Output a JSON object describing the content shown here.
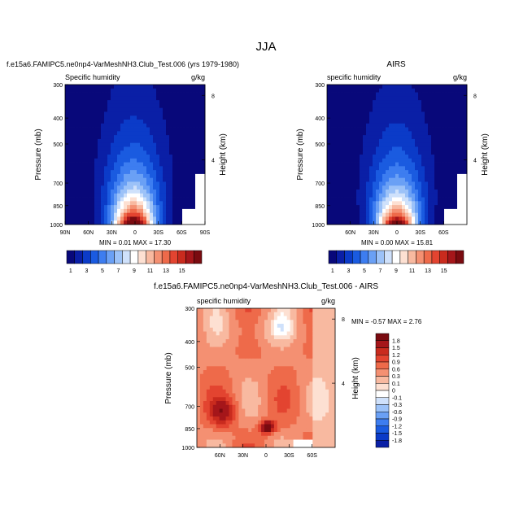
{
  "title": "JJA",
  "chart_data": [
    {
      "type": "heatmap",
      "case_label": "f.e15a6.FAMIPC5.ne0np4-VarMeshNH3.Club_Test.006 (yrs 1979-1980)",
      "title": "Specific humidity",
      "units": "g/kg",
      "ylabel": "Pressure (mb)",
      "ylabel_right": "Height (km)",
      "y_ticks": [
        "300",
        "400",
        "500",
        "700",
        "850",
        "1000"
      ],
      "y_tick_values": [
        300,
        400,
        500,
        700,
        850,
        1000
      ],
      "right_ticks": [
        "8",
        "4"
      ],
      "right_tick_values": [
        8,
        4
      ],
      "x_ticks": [
        "90N",
        "60N",
        "30N",
        "0",
        "30S",
        "60S",
        "90S"
      ],
      "x_tick_values": [
        90,
        60,
        30,
        0,
        -30,
        -60,
        -90
      ],
      "ylim": [
        300,
        1000
      ],
      "xlim": [
        90,
        -90
      ],
      "min": 0.01,
      "max": 17.3,
      "stat_text": "MIN =  0.01  MAX =  17.30",
      "peak_lat": 2,
      "colorbar": {
        "levels": [
          "1",
          "3",
          "5",
          "7",
          "9",
          "11",
          "13",
          "15"
        ],
        "colors": [
          "#08087a",
          "#0a1fa6",
          "#0b3bc8",
          "#1a5be0",
          "#3d7df0",
          "#6aa0f5",
          "#9cc2f8",
          "#cfe1fb",
          "#ffffff",
          "#fde0d2",
          "#f8b9a0",
          "#f49072",
          "#ee6a4a",
          "#e34430",
          "#c92b1e",
          "#a5161a",
          "#7a0b10"
        ]
      }
    },
    {
      "type": "heatmap",
      "title": "AIRS",
      "subtitle": "specific humidity",
      "units": "g/kg",
      "ylabel": "Pressure (mb)",
      "ylabel_right": "Height (km)",
      "y_ticks": [
        "300",
        "400",
        "500",
        "700",
        "850",
        "1000"
      ],
      "y_tick_values": [
        300,
        400,
        500,
        700,
        850,
        1000
      ],
      "right_ticks": [
        "8",
        "4"
      ],
      "right_tick_values": [
        8,
        4
      ],
      "x_ticks": [
        "60N",
        "30N",
        "0",
        "30S",
        "60S"
      ],
      "x_tick_values": [
        60,
        30,
        0,
        -30,
        -60
      ],
      "ylim": [
        300,
        1000
      ],
      "xlim": [
        90,
        -90
      ],
      "min": 0.0,
      "max": 15.81,
      "stat_text": "MIN =  0.00  MAX =  15.81",
      "peak_lat": 0,
      "colorbar": {
        "levels": [
          "1",
          "3",
          "5",
          "7",
          "9",
          "11",
          "13",
          "15"
        ],
        "colors": [
          "#08087a",
          "#0a1fa6",
          "#0b3bc8",
          "#1a5be0",
          "#3d7df0",
          "#6aa0f5",
          "#9cc2f8",
          "#cfe1fb",
          "#ffffff",
          "#fde0d2",
          "#f8b9a0",
          "#f49072",
          "#ee6a4a",
          "#e34430",
          "#c92b1e",
          "#a5161a",
          "#7a0b10"
        ]
      }
    },
    {
      "type": "heatmap",
      "case_label": "f.e15a6.FAMIPC5.ne0np4-VarMeshNH3.Club_Test.006 - AIRS",
      "title": "specific humidity",
      "units": "g/kg",
      "ylabel": "Pressure (mb)",
      "ylabel_right": "Height (km)",
      "y_ticks": [
        "300",
        "400",
        "500",
        "700",
        "850",
        "1000"
      ],
      "y_tick_values": [
        300,
        400,
        500,
        700,
        850,
        1000
      ],
      "right_ticks": [
        "8",
        "4"
      ],
      "right_tick_values": [
        8,
        4
      ],
      "x_ticks": [
        "60N",
        "30N",
        "0",
        "30S",
        "60S"
      ],
      "x_tick_values": [
        60,
        30,
        0,
        -30,
        -60
      ],
      "ylim": [
        300,
        1000
      ],
      "xlim": [
        90,
        -90
      ],
      "min": -0.57,
      "max": 2.76,
      "stat_text": "MIN = -0.57  MAX =  2.76",
      "colorbar": {
        "levels": [
          "1.8",
          "1.5",
          "1.2",
          "0.9",
          "0.6",
          "0.3",
          "0.1",
          "0",
          "-0.1",
          "-0.3",
          "-0.6",
          "-0.9",
          "-1.2",
          "-1.5",
          "-1.8"
        ],
        "colors": [
          "#7a0b10",
          "#a5161a",
          "#c92b1e",
          "#e34430",
          "#ee6a4a",
          "#f49072",
          "#f8b9a0",
          "#fde0d2",
          "#ffffff",
          "#cfe1fb",
          "#9cc2f8",
          "#6aa0f5",
          "#3d7df0",
          "#1a5be0",
          "#0b3bc8",
          "#0a1fa6"
        ]
      }
    }
  ]
}
